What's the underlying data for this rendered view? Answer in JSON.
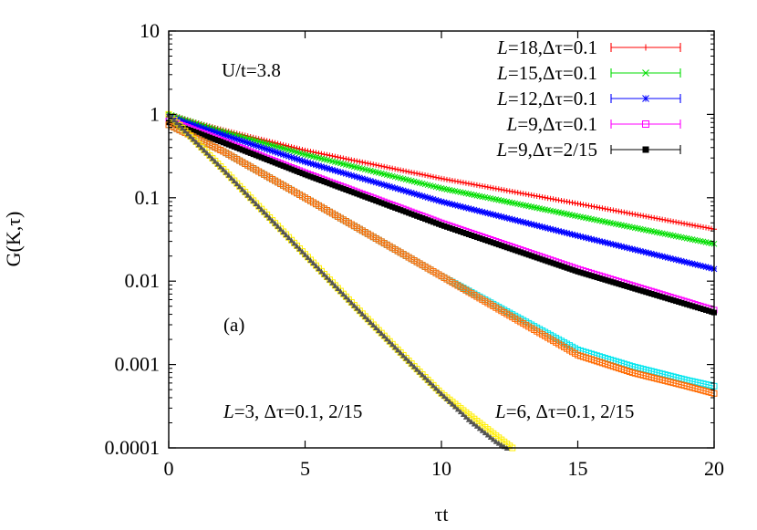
{
  "chart_data": {
    "type": "line",
    "xlabel": "τt",
    "ylabel": "G(K,τ)",
    "xlim": [
      0,
      20
    ],
    "ylim": [
      0.0001,
      10
    ],
    "yscale": "log",
    "x_ticks": [
      0,
      5,
      10,
      15,
      20
    ],
    "x_tick_labels": [
      "0",
      "5",
      "10",
      "15",
      "20"
    ],
    "y_ticks": [
      0.0001,
      0.001,
      0.01,
      0.1,
      1,
      10
    ],
    "y_tick_labels": [
      "0.0001",
      "0.001",
      "0.01",
      "0.1",
      "1",
      "10"
    ],
    "grid": false,
    "legend_position": "top-right",
    "annotations": [
      {
        "text": "U/t=3.8"
      },
      {
        "text": "(a)"
      },
      {
        "text_italic": "L",
        "text": "=3, Δτ=0.1, 2/15"
      },
      {
        "text_italic": "L",
        "text": "=6, Δτ=0.1, 2/15"
      }
    ],
    "series": [
      {
        "name_italic": "L",
        "name": "=18,Δτ=0.1",
        "color": "#ff0000",
        "marker": "plus",
        "in_legend": true,
        "x": [
          0,
          0.5,
          1,
          2,
          5,
          10,
          15,
          20
        ],
        "y": [
          1.0,
          0.9,
          0.8,
          0.65,
          0.37,
          0.17,
          0.085,
          0.042
        ]
      },
      {
        "name_italic": "L",
        "name": "=15,Δτ=0.1",
        "color": "#00dd00",
        "marker": "cross",
        "in_legend": true,
        "x": [
          0,
          0.5,
          1,
          2,
          5,
          10,
          15,
          20
        ],
        "y": [
          1.0,
          0.88,
          0.78,
          0.62,
          0.33,
          0.13,
          0.06,
          0.028
        ]
      },
      {
        "name_italic": "L",
        "name": "=12,Δτ=0.1",
        "color": "#0000ff",
        "marker": "star",
        "in_legend": true,
        "x": [
          0,
          0.5,
          1,
          2,
          5,
          10,
          15,
          20
        ],
        "y": [
          0.95,
          0.83,
          0.73,
          0.57,
          0.27,
          0.09,
          0.035,
          0.014
        ]
      },
      {
        "name_italic": "L",
        "name": "=9,Δτ=0.1",
        "color": "#ff00ff",
        "marker": "open-square",
        "in_legend": true,
        "x": [
          0,
          0.5,
          1,
          2,
          5,
          10,
          15,
          20
        ],
        "y": [
          0.85,
          0.74,
          0.64,
          0.48,
          0.2,
          0.05,
          0.014,
          0.0045
        ]
      },
      {
        "name_italic": "L",
        "name": "=9,Δτ=2/15",
        "color": "#000000",
        "marker": "filled-square",
        "in_legend": true,
        "x": [
          0,
          0.5,
          1,
          2,
          5,
          10,
          15,
          20
        ],
        "y": [
          0.8,
          0.7,
          0.61,
          0.46,
          0.19,
          0.047,
          0.013,
          0.0042
        ]
      },
      {
        "color": "#00e5ee",
        "marker": "open-square",
        "in_legend": false,
        "x": [
          0,
          1,
          2,
          5,
          10,
          15,
          17,
          19,
          20
        ],
        "y": [
          0.75,
          0.52,
          0.36,
          0.1,
          0.0115,
          0.0015,
          0.00095,
          0.00065,
          0.00055
        ]
      },
      {
        "color": "#ff6a00",
        "marker": "open-square",
        "in_legend": false,
        "x": [
          0,
          1,
          2,
          5,
          10,
          15,
          17,
          19,
          20
        ],
        "y": [
          0.75,
          0.52,
          0.36,
          0.1,
          0.0115,
          0.0013,
          0.0008,
          0.00055,
          0.00045
        ]
      },
      {
        "color": "#ffee00",
        "marker": "open-square",
        "in_legend": false,
        "x": [
          0,
          1,
          2,
          3,
          5,
          7,
          9,
          10,
          11,
          12,
          12.6
        ],
        "y": [
          1.0,
          0.47,
          0.22,
          0.1,
          0.021,
          0.0044,
          0.00095,
          0.00045,
          0.00025,
          0.00014,
          0.0001
        ]
      },
      {
        "color": "#555555",
        "marker": "filled-triangle",
        "in_legend": false,
        "x": [
          0,
          1,
          2,
          3,
          5,
          7,
          9,
          10,
          11,
          12,
          12.4
        ],
        "y": [
          1.0,
          0.47,
          0.22,
          0.1,
          0.021,
          0.0044,
          0.00095,
          0.00045,
          0.00022,
          0.00012,
          0.0001
        ]
      }
    ]
  }
}
